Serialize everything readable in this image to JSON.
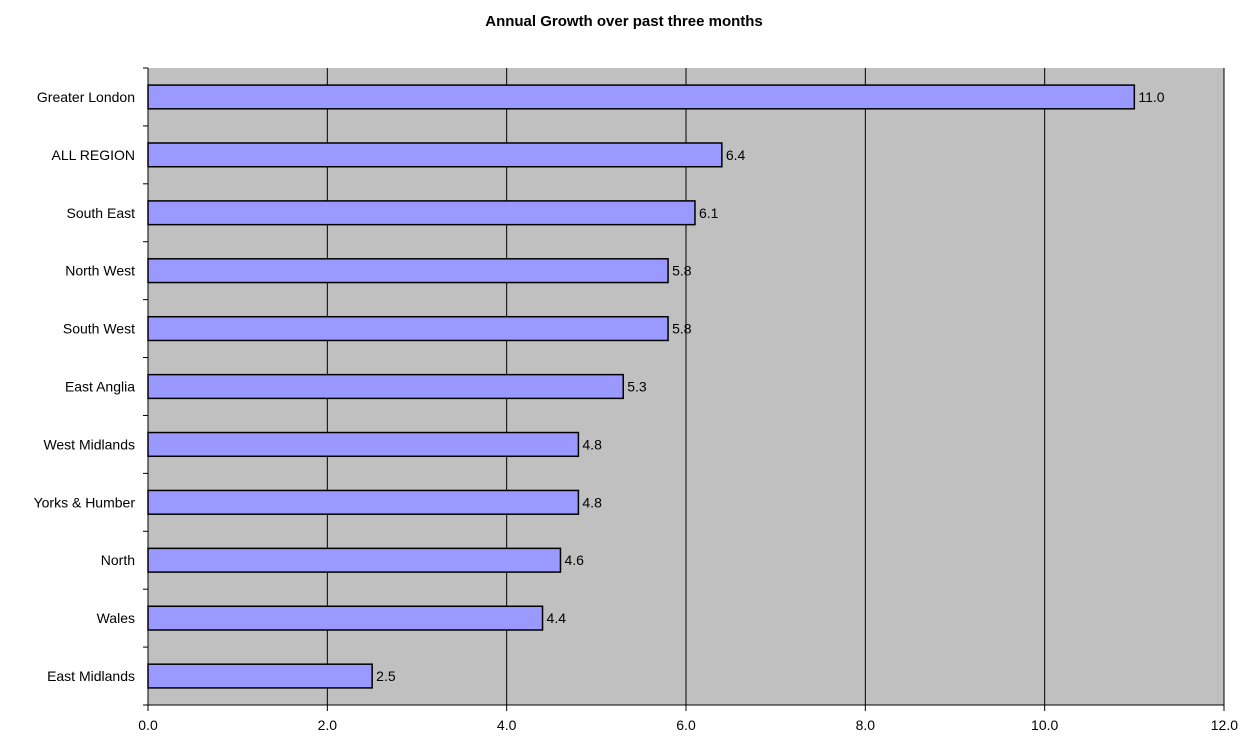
{
  "chart_data": {
    "type": "bar",
    "orientation": "horizontal",
    "title": "Annual Growth over past three months",
    "xlabel": "",
    "ylabel": "",
    "categories": [
      "Greater London",
      "ALL REGION",
      "South East",
      "North West",
      "South West",
      "East Anglia",
      "West Midlands",
      "Yorks & Humber",
      "North",
      "Wales",
      "East Midlands"
    ],
    "values": [
      11.0,
      6.4,
      6.1,
      5.8,
      5.8,
      5.3,
      4.8,
      4.8,
      4.6,
      4.4,
      2.5
    ],
    "value_labels": [
      "11.0",
      "6.4",
      "6.1",
      "5.8",
      "5.8",
      "5.3",
      "4.8",
      "4.8",
      "4.6",
      "4.4",
      "2.5"
    ],
    "xlim": [
      0,
      12
    ],
    "x_ticks": [
      0,
      2,
      4,
      6,
      8,
      10,
      12
    ],
    "x_tick_labels": [
      "0.0",
      "2.0",
      "4.0",
      "6.0",
      "8.0",
      "10.0",
      "12.0"
    ],
    "grid": "vertical",
    "legend": "none",
    "colors": {
      "bar_fill": "#9999ff",
      "bar_stroke": "#000000",
      "plot_background": "#c0c0c0",
      "gridline": "#000000"
    }
  }
}
